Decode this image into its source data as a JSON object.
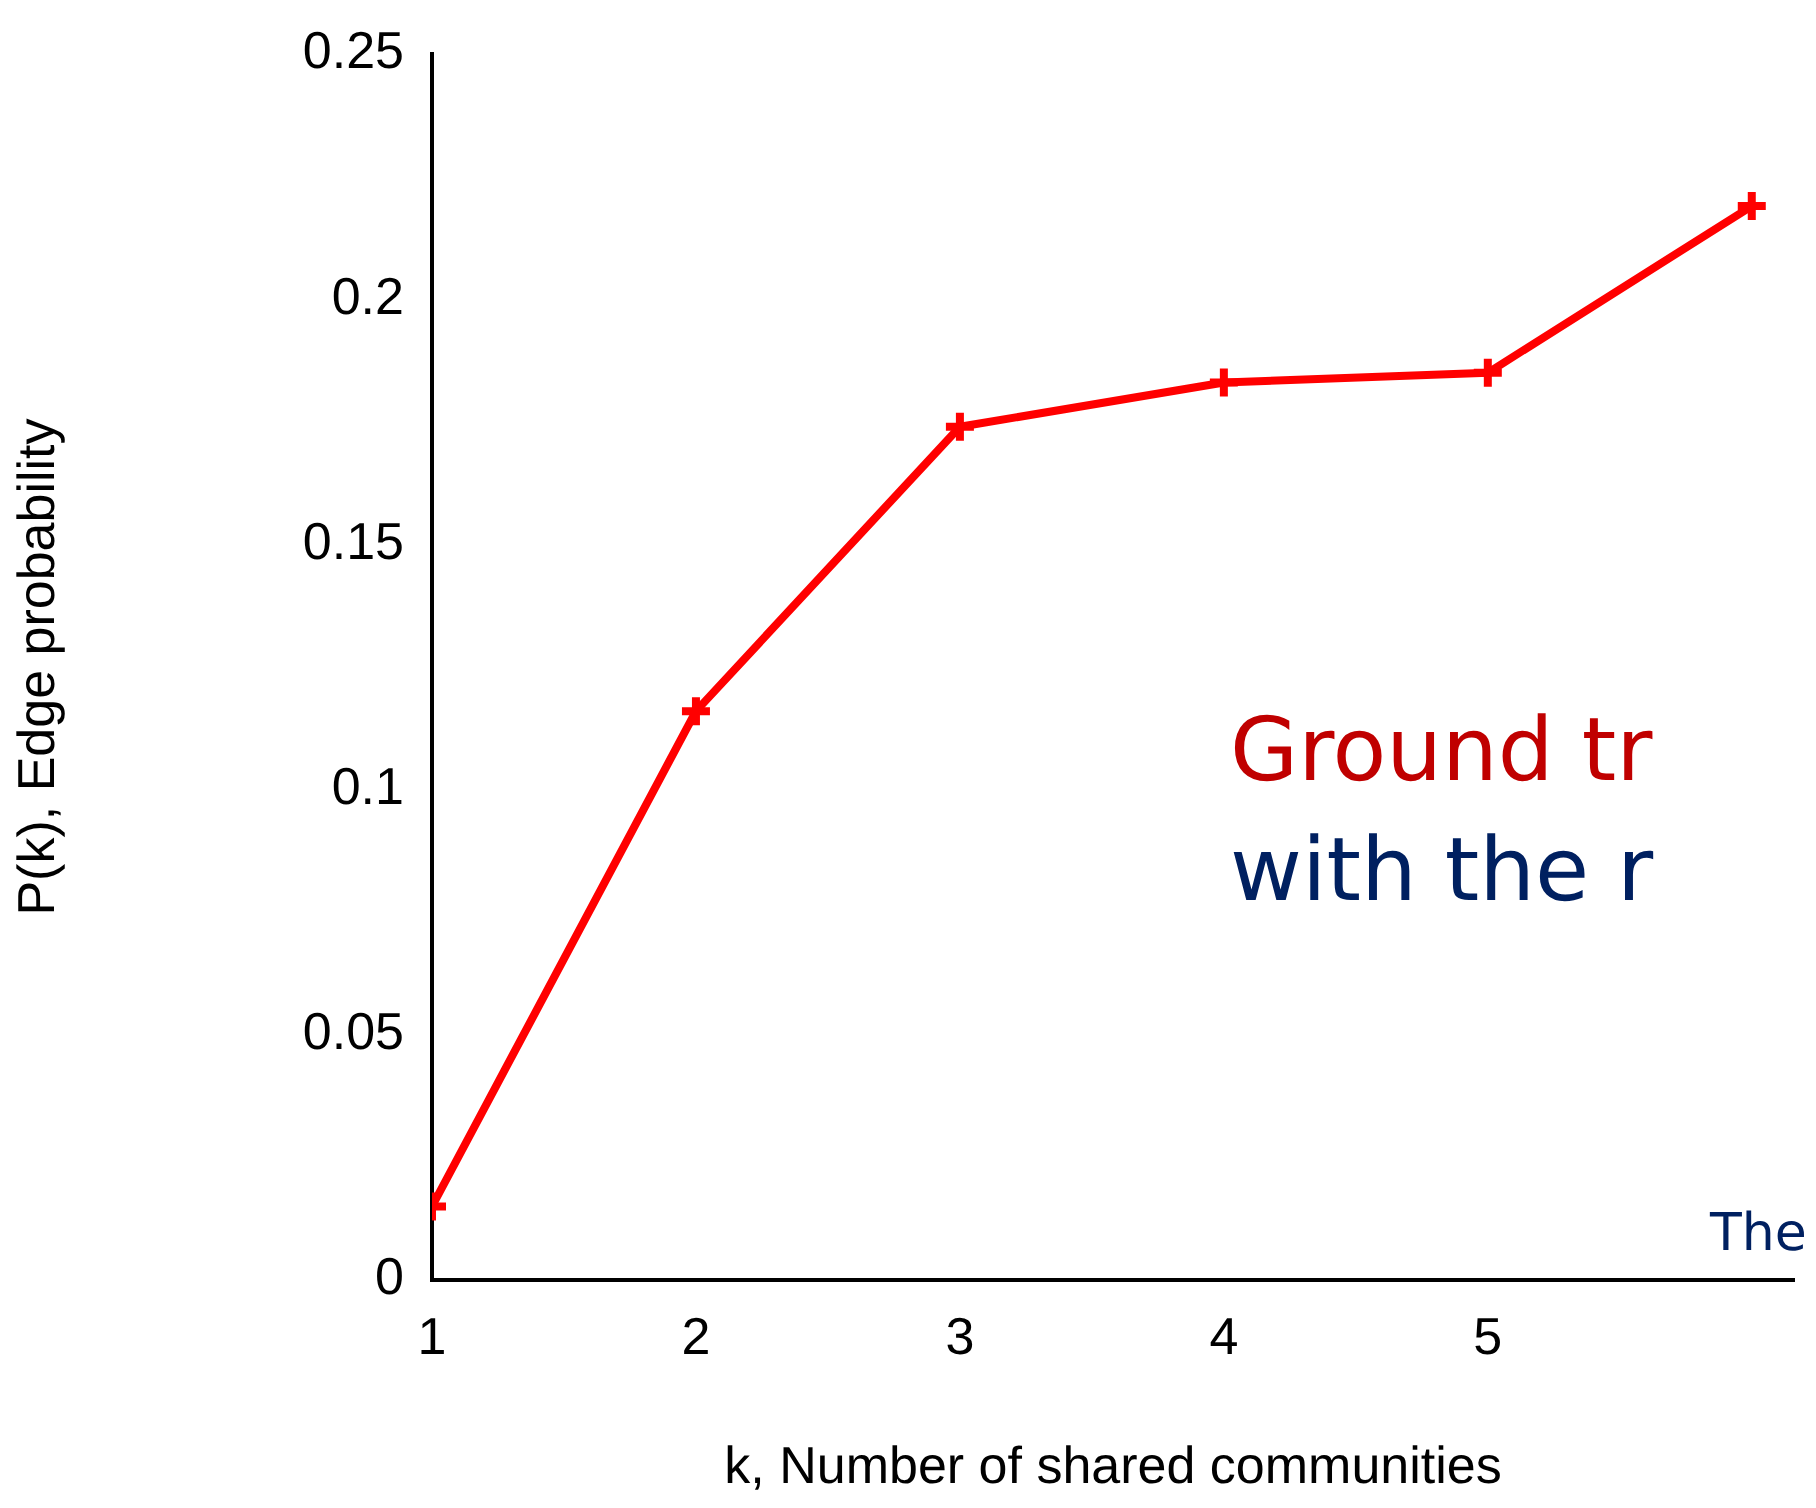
{
  "chart_data": {
    "type": "line",
    "xlabel": "k, Number of shared communities",
    "ylabel": "P(k), Edge probability",
    "x": [
      1,
      2,
      3,
      4,
      5,
      6
    ],
    "series": [
      {
        "color": "#ff0000",
        "values": [
          0.015,
          0.116,
          0.174,
          0.183,
          0.185,
          0.219
        ]
      }
    ],
    "xlim": [
      1,
      6.16
    ],
    "xticks": [
      1,
      2,
      3,
      4,
      5
    ],
    "ylim": [
      0,
      0.25
    ],
    "yticks": [
      0,
      0.05,
      0.1,
      0.15,
      0.2,
      0.25
    ],
    "marker": "cross",
    "line_style": "solid",
    "grid": false,
    "legend": false,
    "annotations": [
      "Ground tr",
      "with the r",
      "The"
    ]
  }
}
